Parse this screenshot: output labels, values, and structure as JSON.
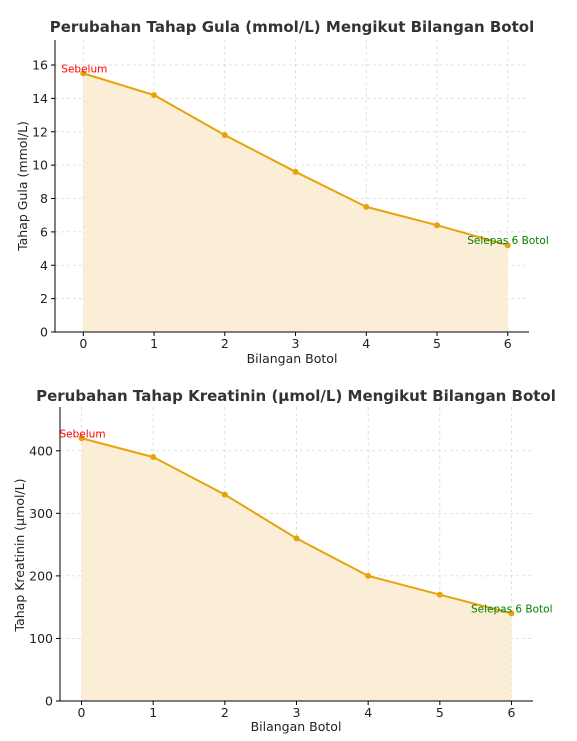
{
  "chart_data": [
    {
      "type": "area",
      "title": "Perubahan Tahap Gula (mmol/L) Mengikut Bilangan Botol",
      "xlabel": "Bilangan Botol",
      "ylabel": "Tahap Gula (mmol/L)",
      "x": [
        0,
        1,
        2,
        3,
        4,
        5,
        6
      ],
      "values": [
        15.5,
        14.2,
        11.8,
        9.6,
        7.5,
        6.4,
        5.2
      ],
      "xlim": [
        -0.4,
        6.3
      ],
      "ylim": [
        0,
        17.5
      ],
      "xticks": [
        0,
        1,
        2,
        3,
        4,
        5,
        6
      ],
      "yticks": [
        0,
        2,
        4,
        6,
        8,
        10,
        12,
        14,
        16
      ],
      "grid": true,
      "line_color": "#e8a20c",
      "fill_color": "#fbeed6",
      "annotations": [
        {
          "text": "Sebelum",
          "x": 0,
          "y": 15.5,
          "color": "#ff0000",
          "anchor": "start"
        },
        {
          "text": "Selepas 6 Botol",
          "x": 6,
          "y": 5.2,
          "color": "#008000",
          "anchor": "end"
        }
      ]
    },
    {
      "type": "area",
      "title": "Perubahan Tahap Kreatinin (µmol/L) Mengikut Bilangan Botol",
      "xlabel": "Bilangan Botol",
      "ylabel": "Tahap Kreatinin (µmol/L)",
      "x": [
        0,
        1,
        2,
        3,
        4,
        5,
        6
      ],
      "values": [
        420,
        390,
        330,
        260,
        200,
        170,
        140
      ],
      "xlim": [
        -0.3,
        6.3
      ],
      "ylim": [
        0,
        470
      ],
      "xticks": [
        0,
        1,
        2,
        3,
        4,
        5,
        6
      ],
      "yticks": [
        0,
        100,
        200,
        300,
        400
      ],
      "grid": true,
      "line_color": "#e8a20c",
      "fill_color": "#fbeed6",
      "annotations": [
        {
          "text": "Sebelum",
          "x": 0,
          "y": 420,
          "color": "#ff0000",
          "anchor": "start"
        },
        {
          "text": "Selepas 6 Botol",
          "x": 6,
          "y": 140,
          "color": "#008000",
          "anchor": "end"
        }
      ]
    }
  ]
}
